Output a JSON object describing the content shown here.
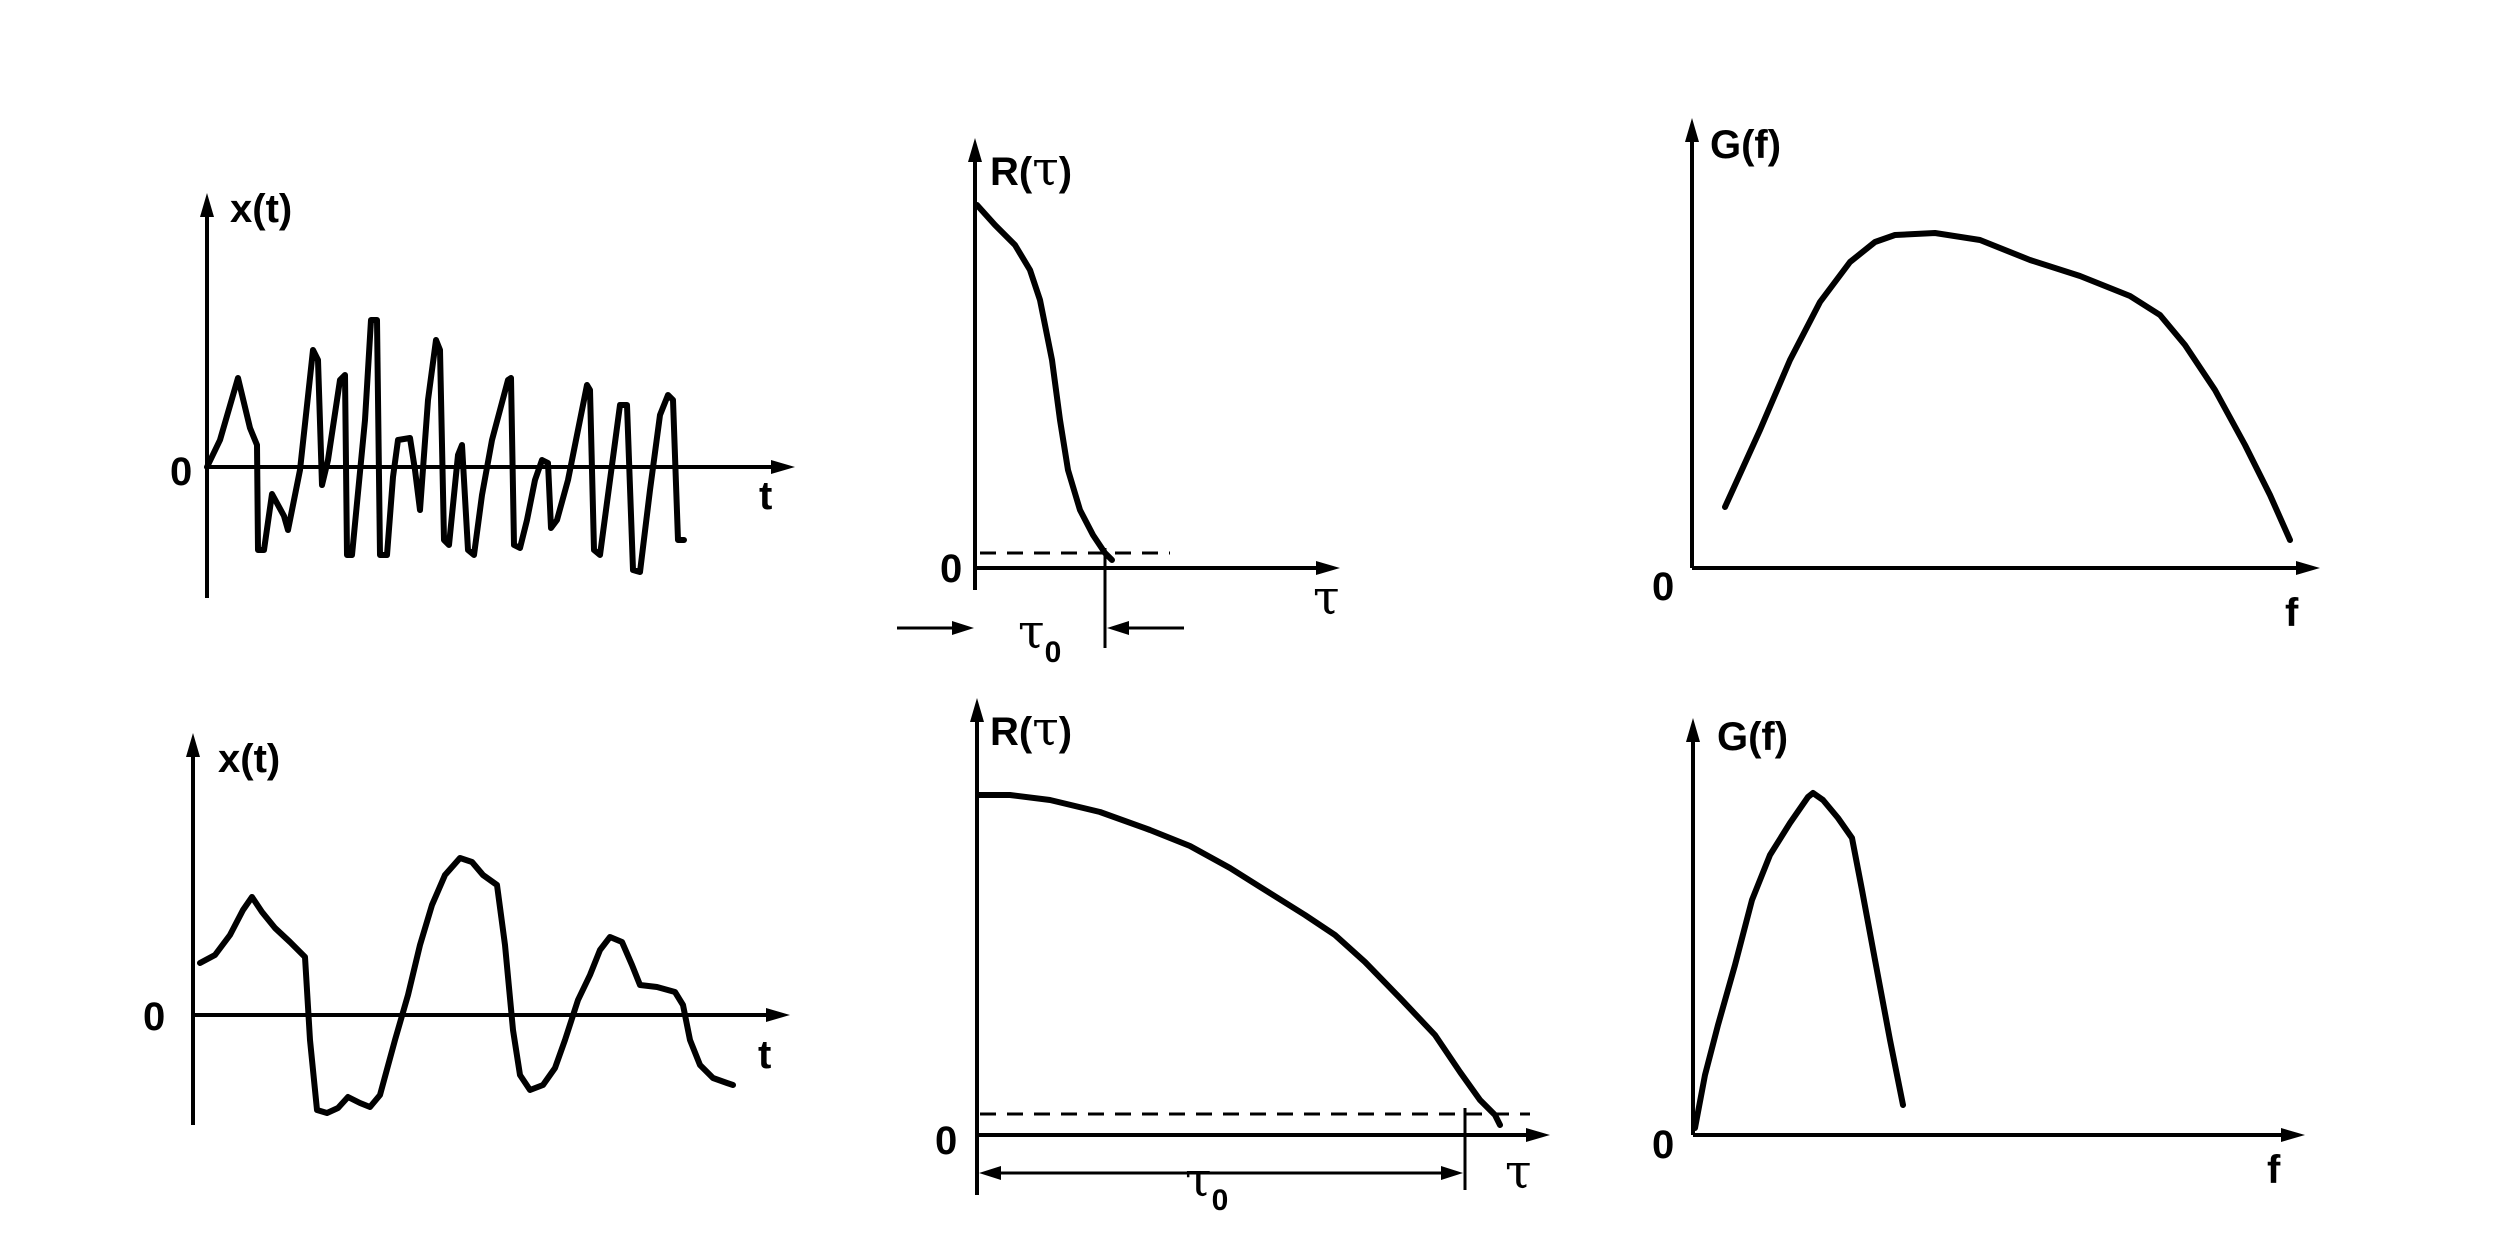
{
  "panels": {
    "signal_fast": {
      "ylabel": "x(t)",
      "xlabel": "t",
      "origin": "0"
    },
    "acf_fast": {
      "ylabel_base": "R(",
      "ylabel_sym": "τ",
      "ylabel_close": ")",
      "xlabel": "τ",
      "origin": "0",
      "tau0_sym": "τ",
      "tau0_sub": "0"
    },
    "psd_fast": {
      "ylabel": "G(f)",
      "xlabel": "f",
      "origin": "0"
    },
    "signal_slow": {
      "ylabel": "x(t)",
      "xlabel": "t",
      "origin": "0"
    },
    "acf_slow": {
      "ylabel_base": "R(",
      "ylabel_sym": "τ",
      "ylabel_close": ")",
      "xlabel": "τ",
      "origin": "0",
      "tau0_sym": "τ",
      "tau0_sub": "0"
    },
    "psd_slow": {
      "ylabel": "G(f)",
      "xlabel": "f",
      "origin": "0"
    }
  },
  "colors": {
    "ink": "#000000",
    "background": "#ffffff"
  }
}
